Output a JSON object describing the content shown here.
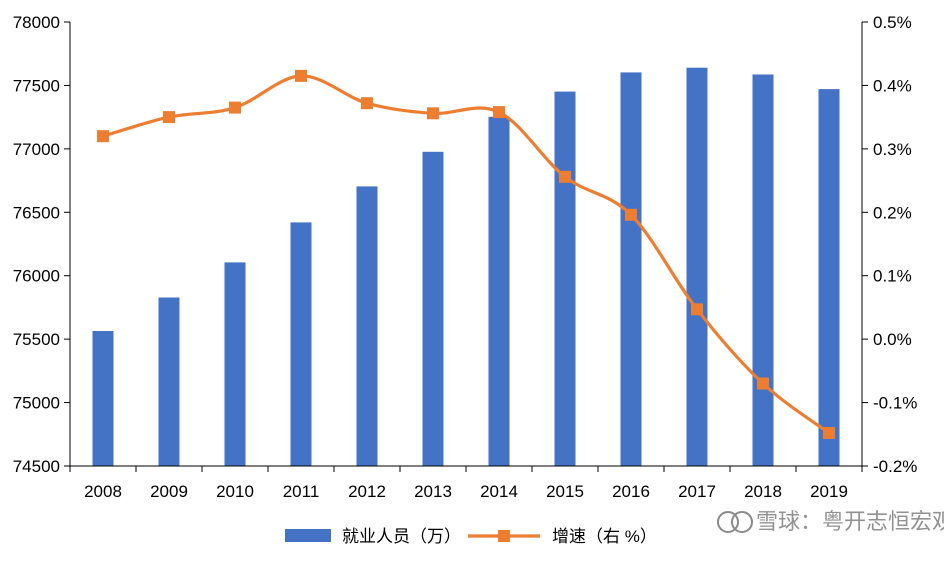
{
  "chart_data": {
    "type": "bar+line",
    "categories": [
      "2008",
      "2009",
      "2010",
      "2011",
      "2012",
      "2013",
      "2014",
      "2015",
      "2016",
      "2017",
      "2018",
      "2019"
    ],
    "series": [
      {
        "name": "就业人员（万）",
        "type": "bar",
        "axis": "left",
        "color": "#4472C4",
        "values": [
          75564,
          75828,
          76105,
          76420,
          76704,
          76977,
          77253,
          77451,
          77603,
          77640,
          77586,
          77471
        ]
      },
      {
        "name": "增速（右 %）",
        "type": "line",
        "axis": "right",
        "color": "#ED7D31",
        "values": [
          0.32,
          0.35,
          0.365,
          0.415,
          0.372,
          0.356,
          0.358,
          0.256,
          0.196,
          0.047,
          -0.07,
          -0.148
        ]
      }
    ],
    "y_left": {
      "ylim": [
        74500,
        78000
      ],
      "ticks": [
        "74500",
        "75000",
        "75500",
        "76000",
        "76500",
        "77000",
        "77500",
        "78000"
      ]
    },
    "y_right": {
      "ylim": [
        -0.2,
        0.5
      ],
      "ticks": [
        "-0.2%",
        "-0.1%",
        "0.0%",
        "0.1%",
        "0.2%",
        "0.3%",
        "0.4%",
        "0.5%"
      ]
    },
    "grid": false,
    "legend_position": "bottom"
  },
  "watermark": {
    "text": "雪球：粤开志恒宏观"
  }
}
